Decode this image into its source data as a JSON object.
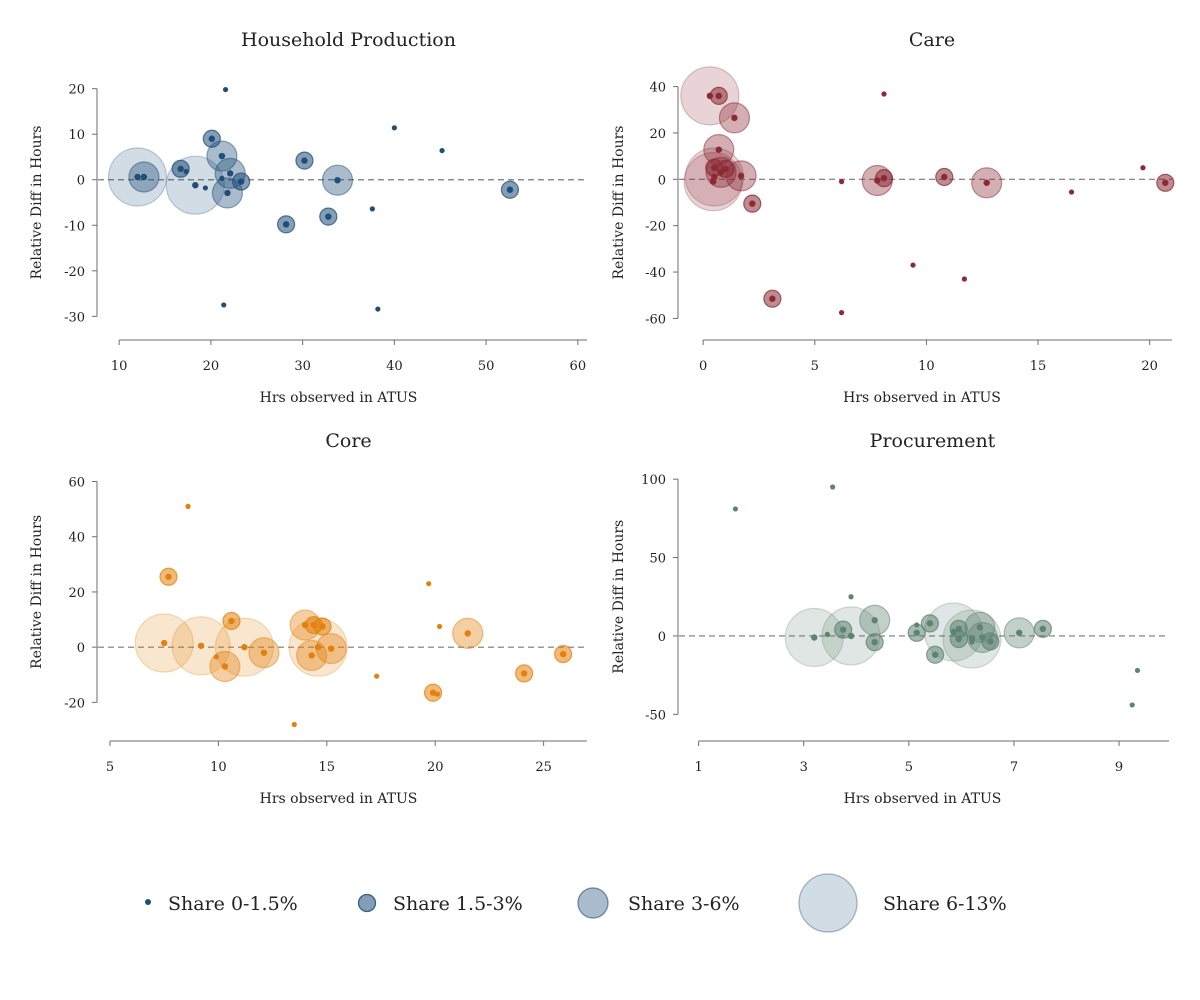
{
  "chart_data": [
    {
      "type": "scatter",
      "title": "Household Production",
      "xlabel": "Hrs observed in ATUS",
      "ylabel": "Relative Diff in Hours",
      "color": "#1f4e79",
      "xlim": [
        9,
        61
      ],
      "ylim": [
        -33,
        23
      ],
      "xticks": [
        10,
        20,
        30,
        40,
        50,
        60
      ],
      "yticks": [
        -30,
        -20,
        -10,
        0,
        10,
        20
      ],
      "reference_line_y": 0,
      "points": [
        {
          "x": 21.6,
          "y": 19.8,
          "size": 0
        },
        {
          "x": 40.0,
          "y": 11.4,
          "size": 0
        },
        {
          "x": 45.2,
          "y": 6.4,
          "size": 0
        },
        {
          "x": 20.1,
          "y": 9.0,
          "size": 1
        },
        {
          "x": 21.2,
          "y": 5.2,
          "size": 2
        },
        {
          "x": 30.2,
          "y": 4.2,
          "size": 1
        },
        {
          "x": 16.7,
          "y": 2.4,
          "size": 1
        },
        {
          "x": 17.3,
          "y": 1.8,
          "size": 0
        },
        {
          "x": 22.1,
          "y": 1.4,
          "size": 2
        },
        {
          "x": 12.0,
          "y": 0.6,
          "size": 3
        },
        {
          "x": 12.7,
          "y": 0.6,
          "size": 2
        },
        {
          "x": 21.2,
          "y": 0.3,
          "size": 0
        },
        {
          "x": 23.3,
          "y": -0.4,
          "size": 1
        },
        {
          "x": 33.8,
          "y": -0.1,
          "size": 2
        },
        {
          "x": 18.3,
          "y": -1.2,
          "size": 3
        },
        {
          "x": 19.4,
          "y": -1.8,
          "size": 0
        },
        {
          "x": 52.6,
          "y": -2.2,
          "size": 1
        },
        {
          "x": 21.8,
          "y": -2.9,
          "size": 2
        },
        {
          "x": 37.6,
          "y": -6.4,
          "size": 0
        },
        {
          "x": 32.8,
          "y": -8.1,
          "size": 1
        },
        {
          "x": 28.2,
          "y": -9.8,
          "size": 1
        },
        {
          "x": 21.4,
          "y": -27.5,
          "size": 0
        },
        {
          "x": 38.2,
          "y": -28.4,
          "size": 0
        }
      ]
    },
    {
      "type": "scatter",
      "title": "Care",
      "xlabel": "Hrs observed in ATUS",
      "ylabel": "Relative Diff in Hours",
      "color": "#8b2a35",
      "xlim": [
        -0.5,
        21
      ],
      "ylim": [
        -65,
        45
      ],
      "xticks": [
        0,
        5,
        10,
        15,
        20
      ],
      "yticks": [
        -60,
        -40,
        -20,
        0,
        20,
        40
      ],
      "reference_line_y": 0,
      "points": [
        {
          "x": 0.3,
          "y": 36.0,
          "size": 3
        },
        {
          "x": 0.7,
          "y": 36.0,
          "size": 1
        },
        {
          "x": 8.1,
          "y": 36.8,
          "size": 0
        },
        {
          "x": 1.4,
          "y": 26.5,
          "size": 2
        },
        {
          "x": 0.7,
          "y": 12.8,
          "size": 2
        },
        {
          "x": 0.5,
          "y": 5.0,
          "size": 1
        },
        {
          "x": 0.8,
          "y": 3.0,
          "size": 2
        },
        {
          "x": 1.0,
          "y": 4.5,
          "size": 1
        },
        {
          "x": 0.5,
          "y": 1.0,
          "size": 3
        },
        {
          "x": 1.7,
          "y": 1.5,
          "size": 2
        },
        {
          "x": 0.45,
          "y": -1.0,
          "size": 3
        },
        {
          "x": 7.8,
          "y": -0.5,
          "size": 2
        },
        {
          "x": 8.1,
          "y": 0.5,
          "size": 1
        },
        {
          "x": 10.8,
          "y": 1.0,
          "size": 1
        },
        {
          "x": 12.7,
          "y": -1.5,
          "size": 2
        },
        {
          "x": 6.2,
          "y": -1.0,
          "size": 0
        },
        {
          "x": 19.7,
          "y": 5.0,
          "size": 0
        },
        {
          "x": 20.7,
          "y": -1.5,
          "size": 1
        },
        {
          "x": 16.5,
          "y": -5.5,
          "size": 0
        },
        {
          "x": 2.2,
          "y": -10.5,
          "size": 1
        },
        {
          "x": 9.4,
          "y": -37.0,
          "size": 0
        },
        {
          "x": 11.7,
          "y": -43.0,
          "size": 0
        },
        {
          "x": 3.1,
          "y": -51.5,
          "size": 1
        },
        {
          "x": 6.2,
          "y": -57.5,
          "size": 0
        }
      ]
    },
    {
      "type": "scatter",
      "title": "Core",
      "xlabel": "Hrs observed in ATUS",
      "ylabel": "Relative Diff in Hours",
      "color": "#e3810f",
      "xlim": [
        5,
        27
      ],
      "ylim": [
        -30,
        62
      ],
      "xticks": [
        5,
        10,
        15,
        20,
        25
      ],
      "yticks": [
        -20,
        0,
        20,
        40,
        60
      ],
      "reference_line_y": 0,
      "points": [
        {
          "x": 8.6,
          "y": 51.0,
          "size": 0
        },
        {
          "x": 7.7,
          "y": 25.5,
          "size": 1
        },
        {
          "x": 19.7,
          "y": 23.0,
          "size": 0
        },
        {
          "x": 10.6,
          "y": 9.5,
          "size": 1
        },
        {
          "x": 20.2,
          "y": 7.5,
          "size": 0
        },
        {
          "x": 14.0,
          "y": 8.0,
          "size": 2
        },
        {
          "x": 14.4,
          "y": 8.0,
          "size": 1
        },
        {
          "x": 14.8,
          "y": 7.5,
          "size": 1
        },
        {
          "x": 21.5,
          "y": 5.0,
          "size": 2
        },
        {
          "x": 7.5,
          "y": 1.5,
          "size": 3
        },
        {
          "x": 9.2,
          "y": 0.5,
          "size": 3
        },
        {
          "x": 11.2,
          "y": 0.0,
          "size": 3
        },
        {
          "x": 14.6,
          "y": 0.0,
          "size": 3
        },
        {
          "x": 15.2,
          "y": -0.5,
          "size": 2
        },
        {
          "x": 12.1,
          "y": -2.0,
          "size": 2
        },
        {
          "x": 14.3,
          "y": -3.0,
          "size": 2
        },
        {
          "x": 9.9,
          "y": -3.5,
          "size": 0
        },
        {
          "x": 10.3,
          "y": -7.0,
          "size": 2
        },
        {
          "x": 25.9,
          "y": -2.5,
          "size": 1
        },
        {
          "x": 24.1,
          "y": -9.5,
          "size": 1
        },
        {
          "x": 17.3,
          "y": -10.5,
          "size": 0
        },
        {
          "x": 19.9,
          "y": -16.5,
          "size": 1
        },
        {
          "x": 20.1,
          "y": -17.0,
          "size": 0
        },
        {
          "x": 13.5,
          "y": -28.0,
          "size": 0
        }
      ]
    },
    {
      "type": "scatter",
      "title": "Procurement",
      "xlabel": "Hrs observed in ATUS",
      "ylabel": "Relative Diff in Hours",
      "color": "#5e8471",
      "xlim": [
        0.95,
        9.95
      ],
      "ylim": [
        -60,
        102
      ],
      "xticks": [
        1,
        3,
        5,
        7,
        9
      ],
      "yticks": [
        -50,
        0,
        50,
        100
      ],
      "reference_line_y": 0,
      "points": [
        {
          "x": 3.55,
          "y": 95.0,
          "size": 0
        },
        {
          "x": 1.7,
          "y": 81.0,
          "size": 0
        },
        {
          "x": 3.9,
          "y": 25.0,
          "size": 0
        },
        {
          "x": 4.35,
          "y": 10.0,
          "size": 2
        },
        {
          "x": 5.4,
          "y": 8.0,
          "size": 1
        },
        {
          "x": 5.15,
          "y": 7.0,
          "size": 0
        },
        {
          "x": 6.35,
          "y": 5.5,
          "size": 2
        },
        {
          "x": 5.95,
          "y": 4.5,
          "size": 1
        },
        {
          "x": 3.75,
          "y": 4.0,
          "size": 1
        },
        {
          "x": 7.55,
          "y": 4.5,
          "size": 1
        },
        {
          "x": 5.85,
          "y": 2.5,
          "size": 3
        },
        {
          "x": 7.1,
          "y": 2.0,
          "size": 2
        },
        {
          "x": 5.15,
          "y": 2.0,
          "size": 1
        },
        {
          "x": 3.2,
          "y": -1.0,
          "size": 3
        },
        {
          "x": 3.45,
          "y": 1.0,
          "size": 0
        },
        {
          "x": 3.9,
          "y": 0.0,
          "size": 3
        },
        {
          "x": 6.4,
          "y": -1.0,
          "size": 2
        },
        {
          "x": 6.2,
          "y": -2.0,
          "size": 3
        },
        {
          "x": 5.95,
          "y": -2.0,
          "size": 1
        },
        {
          "x": 6.55,
          "y": -3.5,
          "size": 1
        },
        {
          "x": 4.35,
          "y": -4.0,
          "size": 1
        },
        {
          "x": 6.2,
          "y": -4.0,
          "size": 0
        },
        {
          "x": 5.5,
          "y": -12.0,
          "size": 1
        },
        {
          "x": 9.35,
          "y": -22.0,
          "size": 0
        },
        {
          "x": 9.25,
          "y": -44.0,
          "size": 0
        }
      ]
    }
  ],
  "legend": {
    "color": "#1f4e79",
    "items": [
      {
        "label": "Share 0-1.5%",
        "size": 0
      },
      {
        "label": "Share 1.5-3%",
        "size": 1
      },
      {
        "label": "Share 3-6%",
        "size": 2
      },
      {
        "label": "Share 6-13%",
        "size": 3
      }
    ]
  }
}
